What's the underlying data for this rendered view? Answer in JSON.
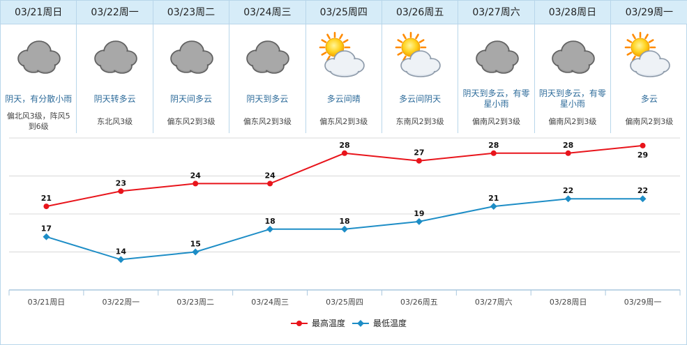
{
  "colors": {
    "high": "#e8141b",
    "low": "#1d8dc6",
    "header_bg": "#d6ecf8",
    "grid": "#d8d8d8"
  },
  "days": [
    {
      "date": "03/21周日",
      "icon": "overcast-cloud-icon",
      "desc": "阴天，有分散小雨",
      "wind": "偏北风3级，阵风5到6级"
    },
    {
      "date": "03/22周一",
      "icon": "overcast-cloud-icon",
      "desc": "阴天转多云",
      "wind": "东北风3级"
    },
    {
      "date": "03/23周二",
      "icon": "overcast-cloud-icon",
      "desc": "阴天间多云",
      "wind": "偏东风2到3级"
    },
    {
      "date": "03/24周三",
      "icon": "overcast-cloud-icon",
      "desc": "阴天到多云",
      "wind": "偏东风2到3级"
    },
    {
      "date": "03/25周四",
      "icon": "sun-cloud-icon",
      "desc": "多云间晴",
      "wind": "偏东风2到3级"
    },
    {
      "date": "03/26周五",
      "icon": "sun-cloud-icon",
      "desc": "多云间阴天",
      "wind": "东南风2到3级"
    },
    {
      "date": "03/27周六",
      "icon": "overcast-cloud-icon",
      "desc": "阴天到多云，有零星小雨",
      "wind": "偏南风2到3级"
    },
    {
      "date": "03/28周日",
      "icon": "overcast-cloud-icon",
      "desc": "阴天到多云，有零星小雨",
      "wind": "偏南风2到3级"
    },
    {
      "date": "03/29周一",
      "icon": "sun-cloud-icon",
      "desc": "多云",
      "wind": "偏南风2到3级"
    }
  ],
  "chart_data": {
    "type": "line",
    "categories": [
      "03/21周日",
      "03/22周一",
      "03/23周二",
      "03/24周三",
      "03/25周四",
      "03/26周五",
      "03/27周六",
      "03/28周日",
      "03/29周一"
    ],
    "series": [
      {
        "name": "最高温度",
        "values": [
          21,
          23,
          24,
          24,
          28,
          27,
          28,
          28,
          29
        ]
      },
      {
        "name": "最低温度",
        "values": [
          17,
          14,
          15,
          18,
          18,
          19,
          21,
          22,
          22
        ]
      }
    ],
    "ylim": [
      10,
      30
    ],
    "grid": true,
    "legend": "bottom-center",
    "title": "",
    "xlabel": "",
    "ylabel": ""
  }
}
